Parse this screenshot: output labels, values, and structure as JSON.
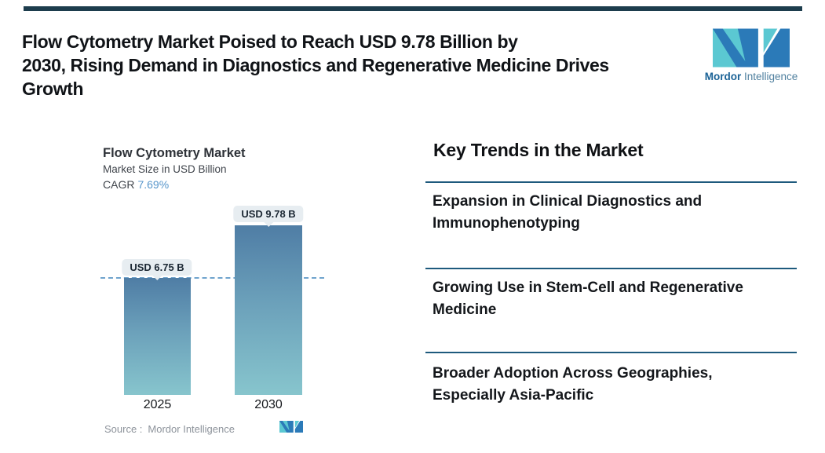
{
  "header": {
    "title_lines": {
      "l1": "Flow Cytometry Market Poised to Reach USD 9.78 Billion by",
      "l2": "2030, Rising Demand in Diagnostics and Regenerative Medicine Drives",
      "l3": "Growth"
    },
    "logo": {
      "brand_bold": "Mordor",
      "brand_regular": "Intelligence"
    }
  },
  "chart": {
    "title": "Flow Cytometry Market",
    "subtitle": "Market Size in USD Billion",
    "cagr_label": "CAGR",
    "cagr_value": "7.69%",
    "source_label": "Source :",
    "source_value": "Mordor Intelligence"
  },
  "chart_data": {
    "type": "bar",
    "categories": [
      "2025",
      "2030"
    ],
    "values": [
      6.75,
      9.78
    ],
    "value_labels": [
      "USD 6.75 B",
      "USD 9.78 B"
    ],
    "title": "Flow Cytometry Market",
    "subtitle": "Market Size in USD Billion",
    "cagr": "7.69%",
    "xlabel": "",
    "ylabel": "Market Size in USD Billion",
    "ylim": [
      0,
      10.5
    ],
    "reference_line": 6.75,
    "reference_line_style": "dashed",
    "grid": false,
    "legend": "none",
    "source": "Source : Mordor Intelligence"
  },
  "trends": {
    "heading": "Key Trends in the Market",
    "items": [
      {
        "line1": "Expansion in Clinical Diagnostics and",
        "line2": "Immunophenotyping"
      },
      {
        "line1": "Growing Use in Stem-Cell and Regenerative",
        "line2": "Medicine"
      },
      {
        "line1": "Broader Adoption Across Geographies,",
        "line2": "Especially Asia-Pacific"
      }
    ]
  },
  "colors": {
    "top_bar": "#1d3d4d",
    "bar_gradient_top": "#4f7da5",
    "bar_gradient_bottom": "#87c5cd",
    "dashed_line": "#6fa3cd",
    "divider": "#1e5a7d",
    "cagr_blue": "#5796cb",
    "pill_bg": "#e7edf1",
    "logo_teal": "#5bc8d2",
    "logo_blue": "#2b7ab8",
    "source_gray": "#8d939b"
  },
  "icons": {
    "mordor_mark": "mordor-logo-mark-icon"
  }
}
